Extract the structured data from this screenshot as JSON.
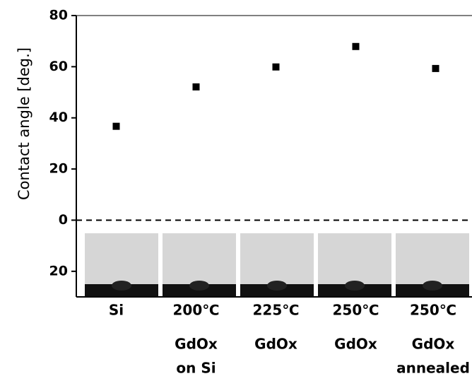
{
  "chart_data": {
    "type": "scatter",
    "y_label": "Contact angle [deg.]",
    "categories": [
      [
        "Si"
      ],
      [
        "200℃",
        "GdOx",
        "on Si"
      ],
      [
        "225℃",
        "GdOx"
      ],
      [
        "250℃",
        "GdOx"
      ],
      [
        "250℃",
        "GdOx",
        "annealed"
      ]
    ],
    "values": [
      36.7,
      52.1,
      59.9,
      67.9,
      59.3
    ],
    "color": "#000000",
    "ylim": [
      -30,
      80
    ],
    "yticks": [
      80,
      60,
      40,
      20,
      0,
      {
        "value": -20,
        "label": "20"
      }
    ],
    "hline": 0
  }
}
